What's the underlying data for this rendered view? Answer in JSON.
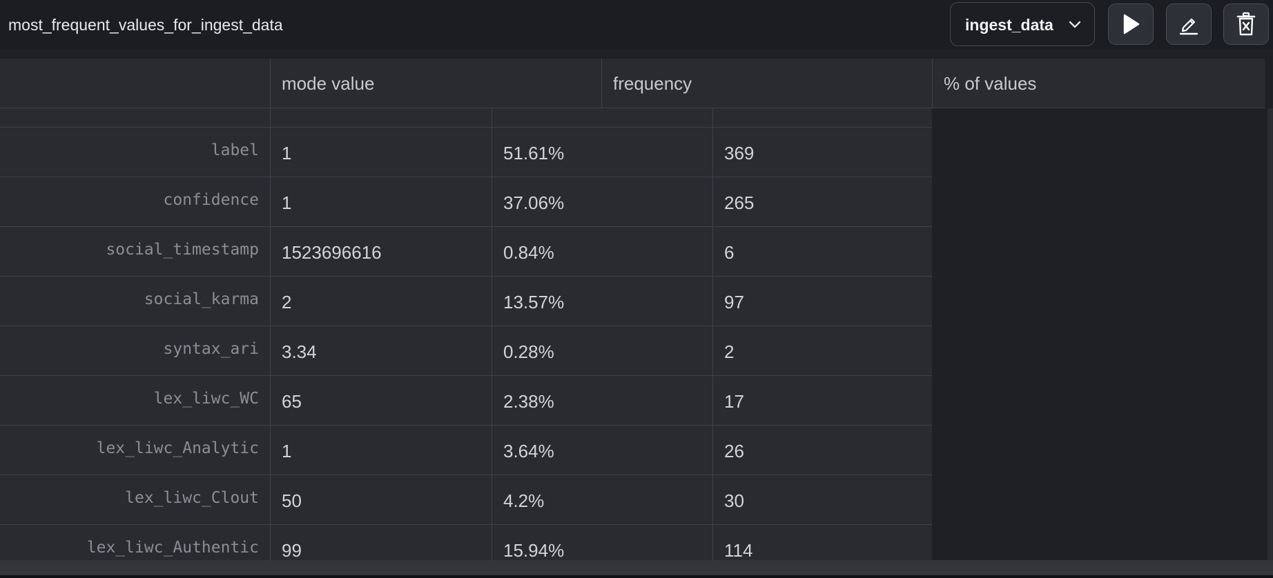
{
  "header": {
    "title": "most_frequent_values_for_ingest_data",
    "dataset_select": {
      "value": "ingest_data",
      "icon": "chevron-down-icon"
    },
    "buttons": [
      {
        "name": "run-button",
        "icon": "play-icon"
      },
      {
        "name": "edit-button",
        "icon": "pencil-icon"
      },
      {
        "name": "delete-button",
        "icon": "trash-icon"
      }
    ]
  },
  "table": {
    "columns": [
      "mode value",
      "frequency",
      "% of values"
    ],
    "rows": [
      {
        "label": "label",
        "cells": [
          "1",
          "51.61%",
          "369"
        ]
      },
      {
        "label": "confidence",
        "cells": [
          "1",
          "37.06%",
          "265"
        ]
      },
      {
        "label": "social_timestamp",
        "cells": [
          "1523696616",
          "0.84%",
          "6"
        ]
      },
      {
        "label": "social_karma",
        "cells": [
          "2",
          "13.57%",
          "97"
        ]
      },
      {
        "label": "syntax_ari",
        "cells": [
          "3.34",
          "0.28%",
          "2"
        ]
      },
      {
        "label": "lex_liwc_WC",
        "cells": [
          "65",
          "2.38%",
          "17"
        ]
      },
      {
        "label": "lex_liwc_Analytic",
        "cells": [
          "1",
          "3.64%",
          "26"
        ]
      },
      {
        "label": "lex_liwc_Clout",
        "cells": [
          "50",
          "4.2%",
          "30"
        ]
      },
      {
        "label": "lex_liwc_Authentic",
        "cells": [
          "99",
          "15.94%",
          "114"
        ]
      }
    ]
  },
  "colors": {
    "background": "#1f2025",
    "header_bg": "#1c1d22",
    "table_bg": "#2a2b31",
    "border": "#3f4148",
    "text": "#d3d4d8",
    "row_label": "#8c8e95"
  }
}
